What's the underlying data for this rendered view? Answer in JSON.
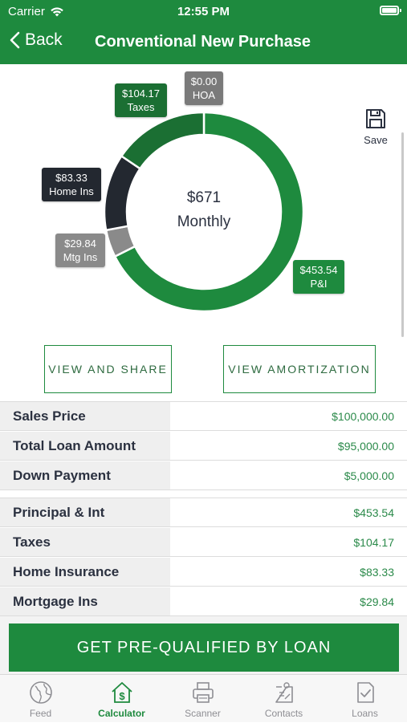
{
  "status_bar": {
    "carrier": "Carrier",
    "time": "12:55 PM"
  },
  "nav": {
    "back_label": "Back",
    "title": "Conventional New Purchase"
  },
  "chart": {
    "center_amount": "$671",
    "center_label": "Monthly",
    "colors": {
      "pi": "#1e8a3e",
      "taxes": "#1b6f33",
      "home_ins": "#232830",
      "mtg_ins": "#8a8a8a",
      "hoa": "#7a7a7a"
    }
  },
  "chart_data": {
    "type": "pie",
    "donut": true,
    "slices": [
      {
        "name": "P&I",
        "value": 453.54,
        "label": "$453.54"
      },
      {
        "name": "Mtg Ins",
        "value": 29.84,
        "label": "$29.84"
      },
      {
        "name": "Home Ins",
        "value": 83.33,
        "label": "$83.33"
      },
      {
        "name": "Taxes",
        "value": 104.17,
        "label": "$104.17"
      },
      {
        "name": "HOA",
        "value": 0.0,
        "label": "$0.00"
      }
    ]
  },
  "save": {
    "label": "Save",
    "icon": "floppy-disk-icon"
  },
  "buttons": {
    "view_and_share": "VIEW AND SHARE",
    "view_amortization": "VIEW AMORTIZATION"
  },
  "loan_summary": [
    {
      "label": "Sales Price",
      "value": "$100,000.00"
    },
    {
      "label": "Total Loan Amount",
      "value": "$95,000.00"
    },
    {
      "label": "Down Payment",
      "value": "$5,000.00"
    }
  ],
  "payment_breakdown": [
    {
      "label": "Principal & Int",
      "value": "$453.54"
    },
    {
      "label": "Taxes",
      "value": "$104.17"
    },
    {
      "label": "Home Insurance",
      "value": "$83.33"
    },
    {
      "label": "Mortgage Ins",
      "value": "$29.84"
    }
  ],
  "cta": {
    "label": "GET PRE-QUALIFIED BY LOAN"
  },
  "tabs": [
    {
      "label": "Feed",
      "icon": "globe-icon"
    },
    {
      "label": "Calculator",
      "icon": "house-dollar-icon",
      "active": true
    },
    {
      "label": "Scanner",
      "icon": "printer-icon"
    },
    {
      "label": "Contacts",
      "icon": "contact-card-icon"
    },
    {
      "label": "Loans",
      "icon": "document-check-icon"
    }
  ]
}
